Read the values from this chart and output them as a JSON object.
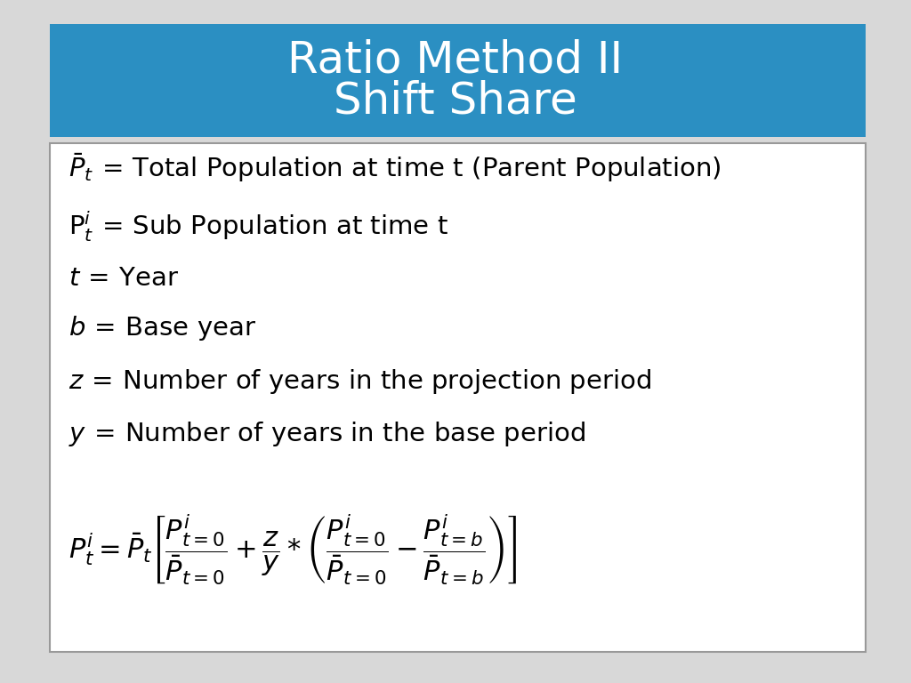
{
  "title_line1": "Ratio Method II",
  "title_line2": "Shift Share",
  "title_bg_color": "#2B8FC2",
  "title_text_color": "#FFFFFF",
  "slide_bg_color": "#D8D8D8",
  "box_bg_color": "#FFFFFF",
  "box_border_color": "#999999",
  "text_color": "#000000",
  "title_fontsize": 36,
  "body_fontsize": 21,
  "formula_fontsize": 22
}
